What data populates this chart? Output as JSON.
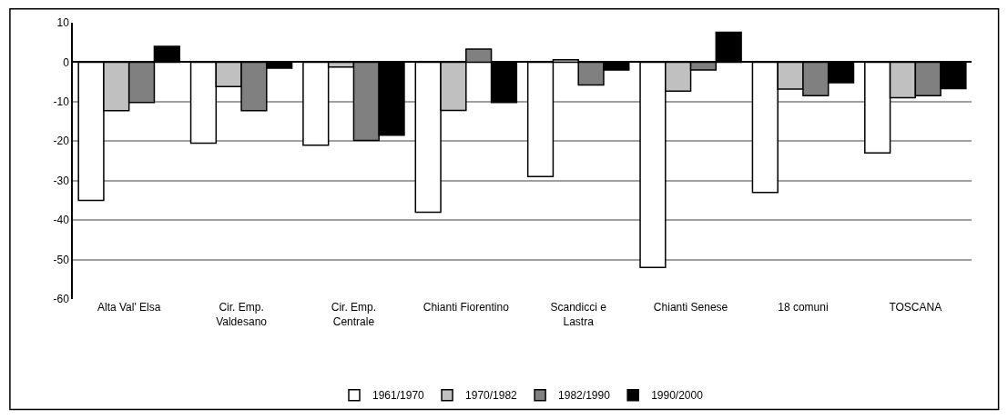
{
  "chart_data": {
    "type": "bar",
    "categories": [
      "Alta Val' Elsa",
      "Cir. Emp.\nValdesano",
      "Cir. Emp.\nCentrale",
      "Chianti Fiorentino",
      "Scandicci e\nLastra",
      "Chianti Senese",
      "18 comuni",
      "TOSCANA"
    ],
    "series": [
      {
        "name": "1961/1970",
        "color": "#ffffff",
        "values": [
          -35,
          -20.5,
          -21,
          -38,
          -29,
          -52,
          -33,
          -23
        ]
      },
      {
        "name": "1970/1982",
        "color": "#c0c0c0",
        "values": [
          -12.3,
          -6.2,
          -1.2,
          -12.2,
          0.6,
          -7.3,
          -6.8,
          -9
        ]
      },
      {
        "name": "1982/1990",
        "color": "#808080",
        "values": [
          -10.2,
          -12.3,
          -19.8,
          3.3,
          -5.8,
          -2,
          -8.5,
          -8.5
        ]
      },
      {
        "name": "1990/2000",
        "color": "#000000",
        "values": [
          4,
          -1.5,
          -18.5,
          -10.2,
          -2,
          7.6,
          -5.2,
          -6.7
        ]
      }
    ],
    "ylim": [
      -60,
      10
    ],
    "yticks": [
      -60,
      -50,
      -40,
      -30,
      -20,
      -10,
      0,
      10
    ],
    "grid": "y",
    "legend": "bottom"
  }
}
